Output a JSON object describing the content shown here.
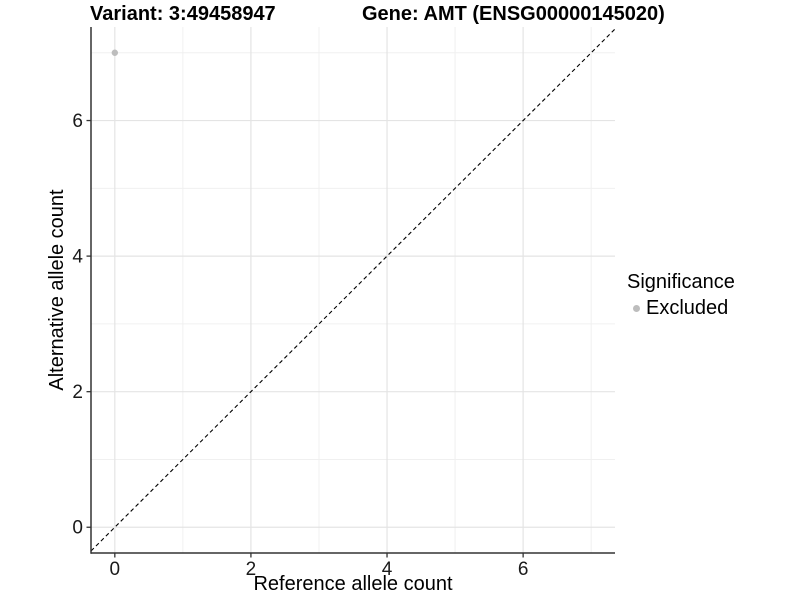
{
  "header": {
    "variant_title": "Variant: 3:49458947",
    "gene_title": "Gene: AMT (ENSG00000145020)"
  },
  "chart_data": {
    "type": "scatter",
    "title": "",
    "xlabel": "Reference allele count",
    "ylabel": "Alternative allele count",
    "xlim": [
      -0.35,
      7.35
    ],
    "ylim": [
      -0.38,
      7.38
    ],
    "x_major_ticks": [
      0,
      2,
      4,
      6
    ],
    "x_minor_ticks": [
      1,
      3,
      5,
      7
    ],
    "y_major_ticks": [
      0,
      2,
      4,
      6
    ],
    "y_minor_ticks": [
      1,
      3,
      5,
      7
    ],
    "grid": true,
    "grid_major_color": "#e4e4e4",
    "grid_minor_color": "#f0f0f0",
    "axis_line_color": "#333333",
    "identity_line": {
      "style": "dashed",
      "equation": "y = x",
      "from": -0.35,
      "to": 7.35,
      "color": "#000000"
    },
    "series": [
      {
        "name": "Excluded",
        "color": "#bdbdbd",
        "points": [
          {
            "x": 0,
            "y": 7
          }
        ]
      }
    ],
    "legend": {
      "position": "right",
      "title": "Significance",
      "items": [
        {
          "label": "Excluded",
          "color": "#bdbdbd"
        }
      ]
    }
  }
}
